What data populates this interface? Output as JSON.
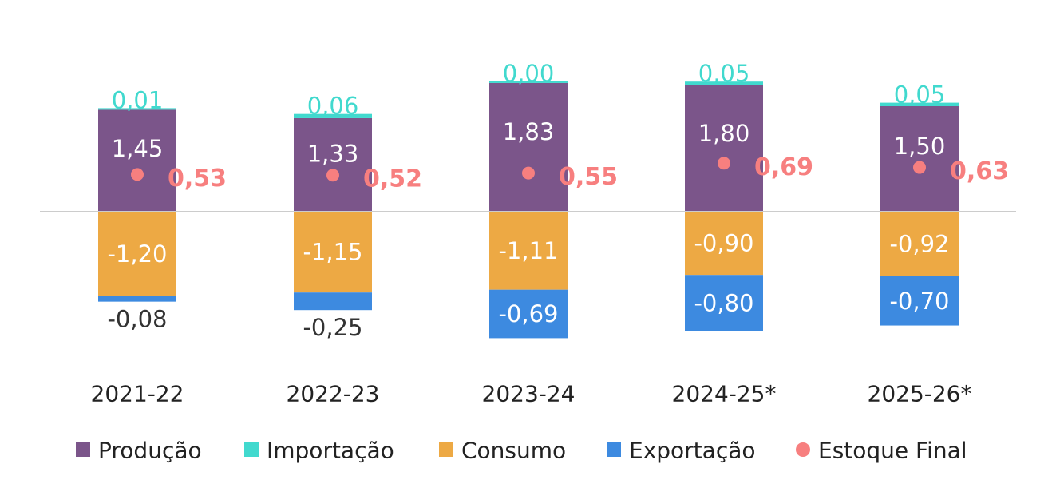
{
  "chart_data": {
    "type": "bar",
    "stacked": true,
    "categories": [
      "2021-22",
      "2022-23",
      "2023-24",
      "2024-25*",
      "2025-26*"
    ],
    "series": [
      {
        "name": "Produção",
        "color": "#7B558A",
        "values": [
          1.45,
          1.33,
          1.83,
          1.8,
          1.5
        ],
        "labels": [
          "1,45",
          "1,33",
          "1,83",
          "1,80",
          "1,50"
        ]
      },
      {
        "name": "Importação",
        "color": "#41D9CE",
        "values": [
          0.01,
          0.06,
          0.0,
          0.05,
          0.05
        ],
        "labels": [
          "0,01",
          "0,06",
          "0,00",
          "0,05",
          "0,05"
        ]
      },
      {
        "name": "Consumo",
        "color": "#EDA944",
        "values": [
          -1.2,
          -1.15,
          -1.11,
          -0.9,
          -0.92
        ],
        "labels": [
          "-1,20",
          "-1,15",
          "-1,11",
          "-0,90",
          "-0,92"
        ]
      },
      {
        "name": "Exportação",
        "color": "#3D8AE0",
        "values": [
          -0.08,
          -0.25,
          -0.69,
          -0.8,
          -0.7
        ],
        "labels": [
          "-0,08",
          "-0,25",
          "-0,69",
          "-0,80",
          "-0,70"
        ]
      }
    ],
    "markers": {
      "name": "Estoque Final",
      "color": "#F77F7F",
      "type": "scatter",
      "values": [
        0.53,
        0.52,
        0.55,
        0.69,
        0.63
      ],
      "labels": [
        "0,53",
        "0,52",
        "0,55",
        "0,69",
        "0,63"
      ]
    },
    "legend_position": "bottom",
    "grid": false
  }
}
